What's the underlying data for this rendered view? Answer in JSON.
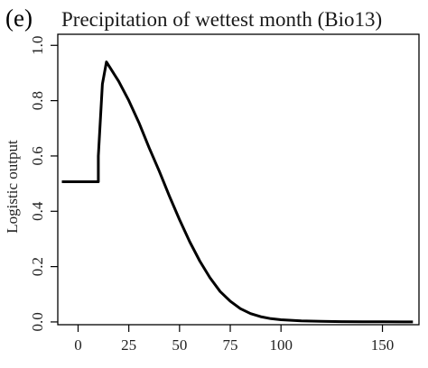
{
  "chart_data": {
    "type": "line",
    "panel_label": "(e)",
    "title": "Precipitation of wettest month (Bio13)",
    "xlabel": "",
    "ylabel": "Logistic output",
    "xlim": [
      -10,
      168
    ],
    "ylim": [
      -0.01,
      1.04
    ],
    "x_ticks": [
      0,
      25,
      50,
      75,
      100,
      150
    ],
    "x_tick_labels": [
      "0",
      "25",
      "50",
      "75",
      "100",
      "150"
    ],
    "y_ticks": [
      0.0,
      0.2,
      0.4,
      0.6,
      0.8,
      1.0
    ],
    "y_tick_labels": [
      "0.0",
      "0.2",
      "0.4",
      "0.6",
      "0.8",
      "1.0"
    ],
    "grid": false,
    "line_color": "#000000",
    "series": [
      {
        "x": [
          -8,
          10,
          10,
          12,
          14,
          20,
          25,
          30,
          35,
          40,
          45,
          50,
          55,
          60,
          65,
          70,
          75,
          80,
          85,
          90,
          95,
          100,
          110,
          120,
          130,
          140,
          150,
          160,
          165
        ],
        "y": [
          0.507,
          0.507,
          0.6,
          0.86,
          0.94,
          0.87,
          0.8,
          0.72,
          0.63,
          0.545,
          0.455,
          0.37,
          0.29,
          0.22,
          0.16,
          0.11,
          0.075,
          0.048,
          0.03,
          0.019,
          0.012,
          0.008,
          0.004,
          0.002,
          0.001,
          0.0005,
          0.0003,
          0.0002,
          0.0001
        ]
      }
    ]
  }
}
